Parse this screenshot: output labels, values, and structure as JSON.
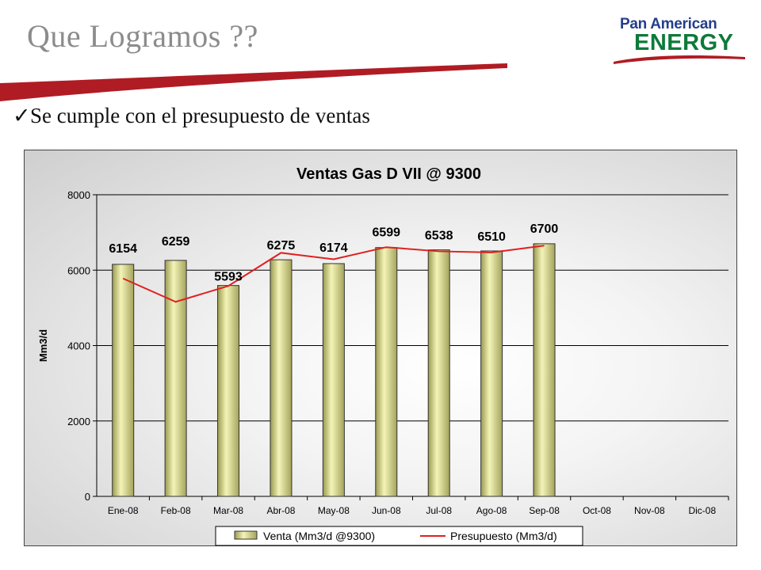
{
  "slide": {
    "title": "Que Logramos ??",
    "bullet_text": "Se cumple con el presupuesto de ventas",
    "logo_line1": "Pan American",
    "logo_line2": "ENERGY"
  },
  "chart_data": {
    "type": "bar",
    "title": "Ventas Gas D VII @ 9300",
    "ylabel": "Mm3/d",
    "xlabel": "",
    "ylim": [
      0,
      8000
    ],
    "yticks": [
      0,
      2000,
      4000,
      6000,
      8000
    ],
    "grid": true,
    "legend_position": "bottom",
    "categories": [
      "Ene-08",
      "Feb-08",
      "Mar-08",
      "Abr-08",
      "May-08",
      "Jun-08",
      "Jul-08",
      "Ago-08",
      "Sep-08",
      "Oct-08",
      "Nov-08",
      "Dic-08"
    ],
    "series": [
      {
        "name": "Venta (Mm3/d @9300)",
        "type": "bar",
        "color": "#e8e8a0",
        "values": [
          6154,
          6259,
          5593,
          6275,
          6174,
          6599,
          6538,
          6510,
          6700,
          null,
          null,
          null
        ]
      },
      {
        "name": "Presupuesto (Mm3/d)",
        "type": "line",
        "color": "#e02020",
        "values": [
          5780,
          5160,
          5580,
          6460,
          6290,
          6610,
          6500,
          6470,
          6650,
          null,
          null,
          null
        ]
      }
    ],
    "data_labels": [
      "6154",
      "6259",
      "5593",
      "6275",
      "6174",
      "6599",
      "6538",
      "6510",
      "6700"
    ]
  }
}
